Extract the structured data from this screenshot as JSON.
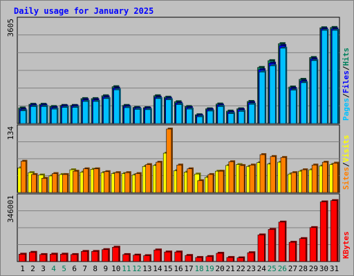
{
  "chart_data": {
    "type": "bar",
    "title": "Daily usage for January 2025",
    "categories": [
      "1",
      "2",
      "3",
      "4",
      "5",
      "6",
      "7",
      "8",
      "9",
      "10",
      "11",
      "12",
      "13",
      "14",
      "15",
      "16",
      "17",
      "18",
      "19",
      "20",
      "21",
      "22",
      "23",
      "24",
      "25",
      "26",
      "27",
      "28",
      "29",
      "30",
      "31"
    ],
    "weekend_days": [
      "4",
      "5",
      "11",
      "12",
      "18",
      "19",
      "25",
      "26"
    ],
    "panels": [
      {
        "id": "hits",
        "max_label": "3605",
        "ylim": [
          0,
          3605
        ],
        "grid": true,
        "legend": [
          "Pages",
          "Files",
          "Hits"
        ],
        "series": [
          {
            "name": "Hits",
            "color": "#00805c",
            "values": [
              550,
              680,
              680,
              600,
              640,
              640,
              880,
              880,
              980,
              1300,
              640,
              570,
              560,
              980,
              930,
              770,
              600,
              310,
              520,
              690,
              440,
              520,
              780,
              1980,
              2220,
              2820,
              1290,
              1560,
              2330,
              3380,
              3390
            ]
          },
          {
            "name": "Files",
            "color": "#0000ff",
            "values": [
              500,
              650,
              650,
              560,
              620,
              620,
              840,
              840,
              940,
              1250,
              610,
              540,
              540,
              930,
              890,
              720,
              560,
              280,
              490,
              650,
              400,
              490,
              740,
              1900,
              2130,
              2750,
              1240,
              1500,
              2280,
              3340,
              3340
            ]
          },
          {
            "name": "Pages",
            "color": "#00c0ff",
            "values": [
              450,
              600,
              600,
              510,
              570,
              570,
              780,
              780,
              880,
              1190,
              560,
              500,
              490,
              880,
              840,
              670,
              510,
              240,
              440,
              600,
              350,
              430,
              680,
              1820,
              2040,
              2660,
              1180,
              1440,
              2220,
              3290,
              3290
            ]
          }
        ]
      },
      {
        "id": "visits",
        "max_label": "134",
        "ylim": [
          0,
          134
        ],
        "grid": true,
        "legend": [
          "Sites",
          "Visits"
        ],
        "series": [
          {
            "name": "Visits",
            "color": "#ffff00",
            "values": [
              52,
              42,
              37,
              35,
              38,
              48,
              43,
              49,
              42,
              40,
              40,
              37,
              55,
              57,
              83,
              46,
              43,
              39,
              32,
              45,
              57,
              59,
              55,
              63,
              60,
              64,
              39,
              45,
              48,
              56,
              59
            ]
          },
          {
            "name": "Sites",
            "color": "#ff8000",
            "values": [
              66,
              38,
              30,
              40,
              38,
              45,
              50,
              50,
              44,
              42,
              42,
              40,
              59,
              64,
              134,
              58,
              50,
              25,
              38,
              45,
              65,
              57,
              58,
              80,
              76,
              74,
              42,
              48,
              58,
              64,
              62
            ]
          }
        ]
      },
      {
        "id": "kbytes",
        "max_label": "346001",
        "ylim": [
          0,
          346001
        ],
        "grid": true,
        "legend": [
          "KBytes"
        ],
        "series": [
          {
            "name": "KBytes",
            "color": "#ff0000",
            "values": [
              40000,
              50000,
              38000,
              40000,
              40000,
              38000,
              55000,
              55000,
              65000,
              78000,
              38000,
              35000,
              32000,
              63000,
              52000,
              52000,
              33000,
              22000,
              27000,
              45000,
              22000,
              20000,
              48000,
              145000,
              175000,
              215000,
              105000,
              125000,
              185000,
              325000,
              332000
            ]
          }
        ]
      }
    ]
  }
}
